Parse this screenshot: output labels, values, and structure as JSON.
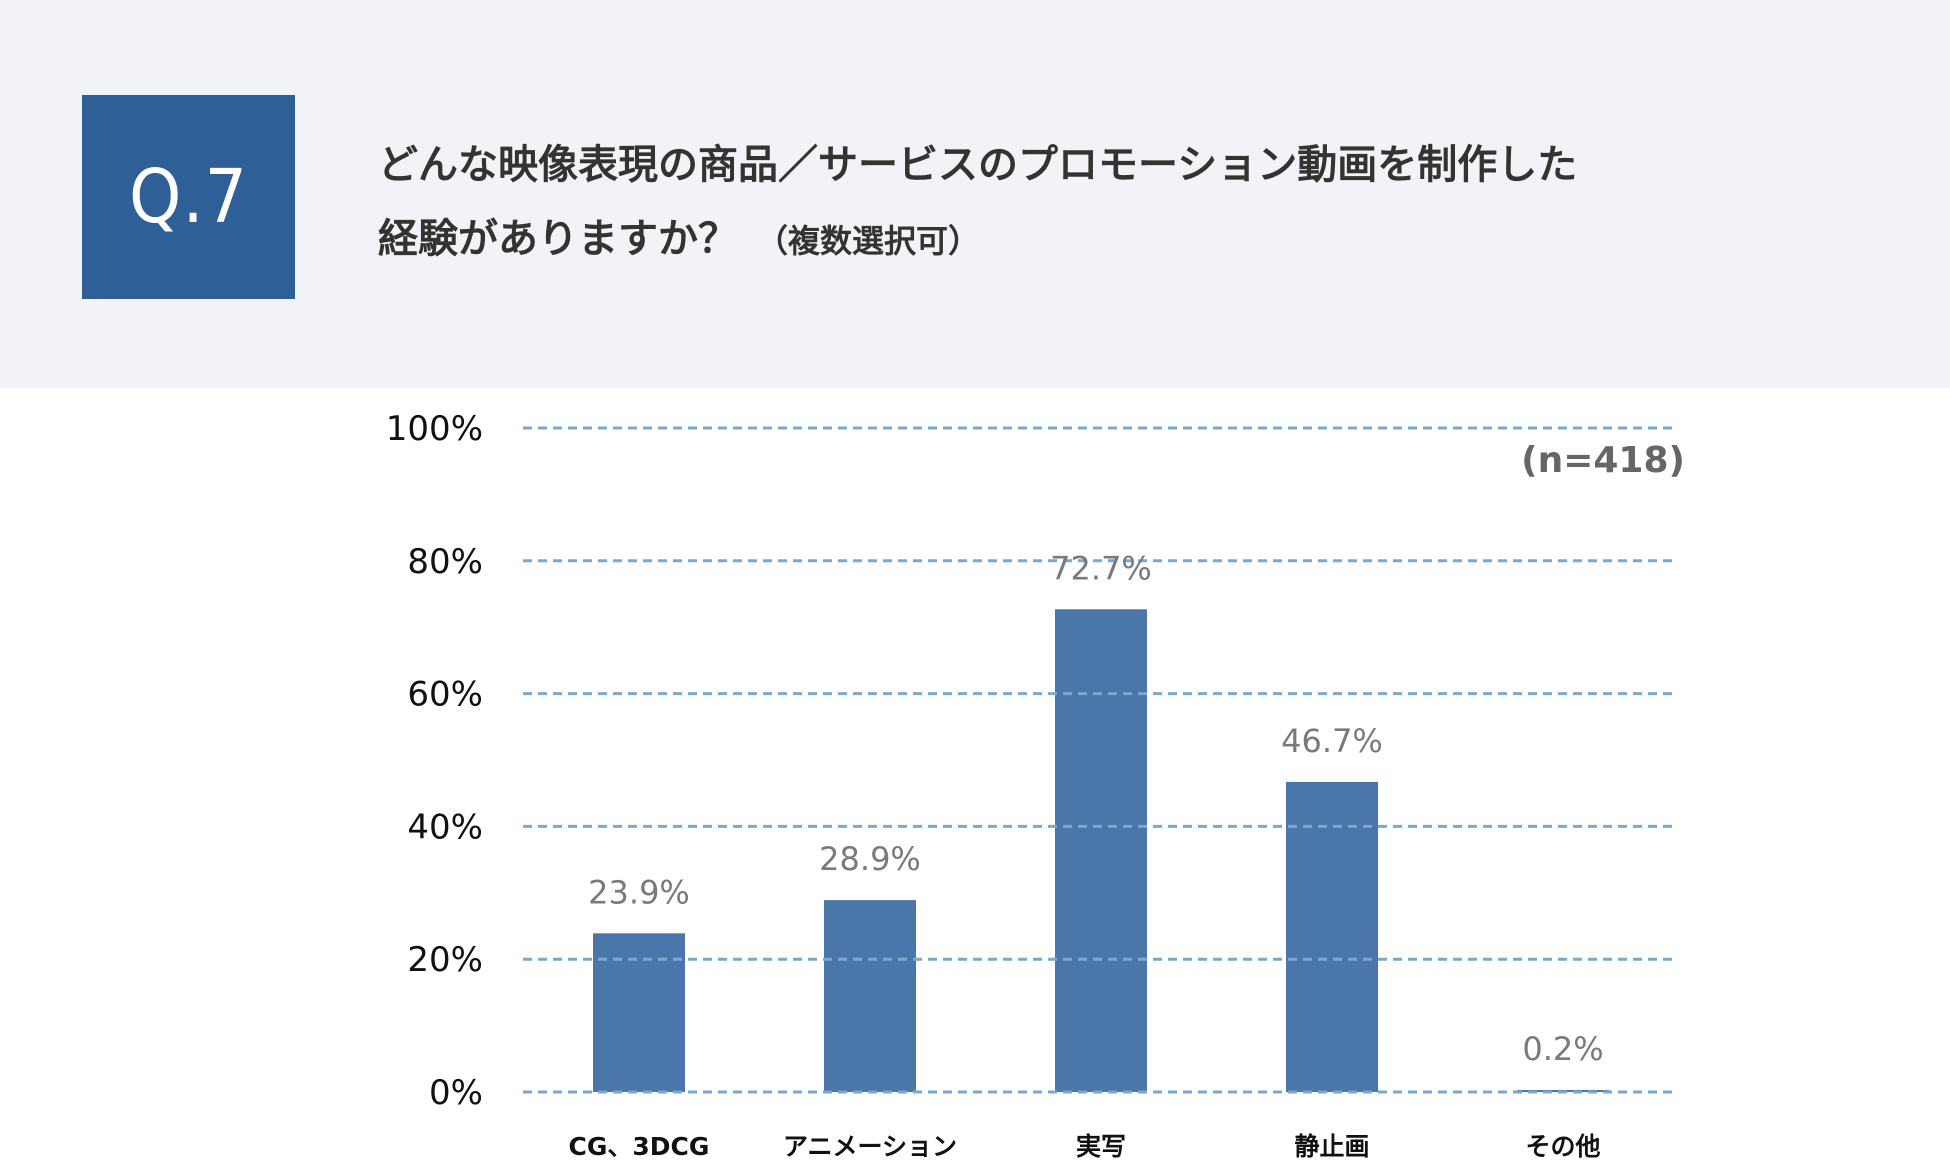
{
  "header": {
    "question_number": "Q.7",
    "title_line1": "どんな映像表現の商品／サービスのプロモーション動画を制作した",
    "title_line2": "経験がありますか？",
    "title_note": "（複数選択可）"
  },
  "chart_data": {
    "type": "bar",
    "categories": [
      "CG、3DCG",
      "アニメーション",
      "実写",
      "静止画",
      "その他"
    ],
    "values": [
      23.9,
      28.9,
      72.7,
      46.7,
      0.2
    ],
    "value_labels": [
      "23.9%",
      "28.9%",
      "72.7%",
      "46.7%",
      "0.2%"
    ],
    "sample_size": "(n=418)",
    "ylim": [
      0,
      100
    ],
    "yticks": [
      0,
      20,
      40,
      60,
      80,
      100
    ],
    "ytick_labels": [
      "0%",
      "20%",
      "40%",
      "60%",
      "80%",
      "100%"
    ],
    "grid": true,
    "bar_color": "#4a76aa",
    "grid_color": "#7aa9d0"
  }
}
